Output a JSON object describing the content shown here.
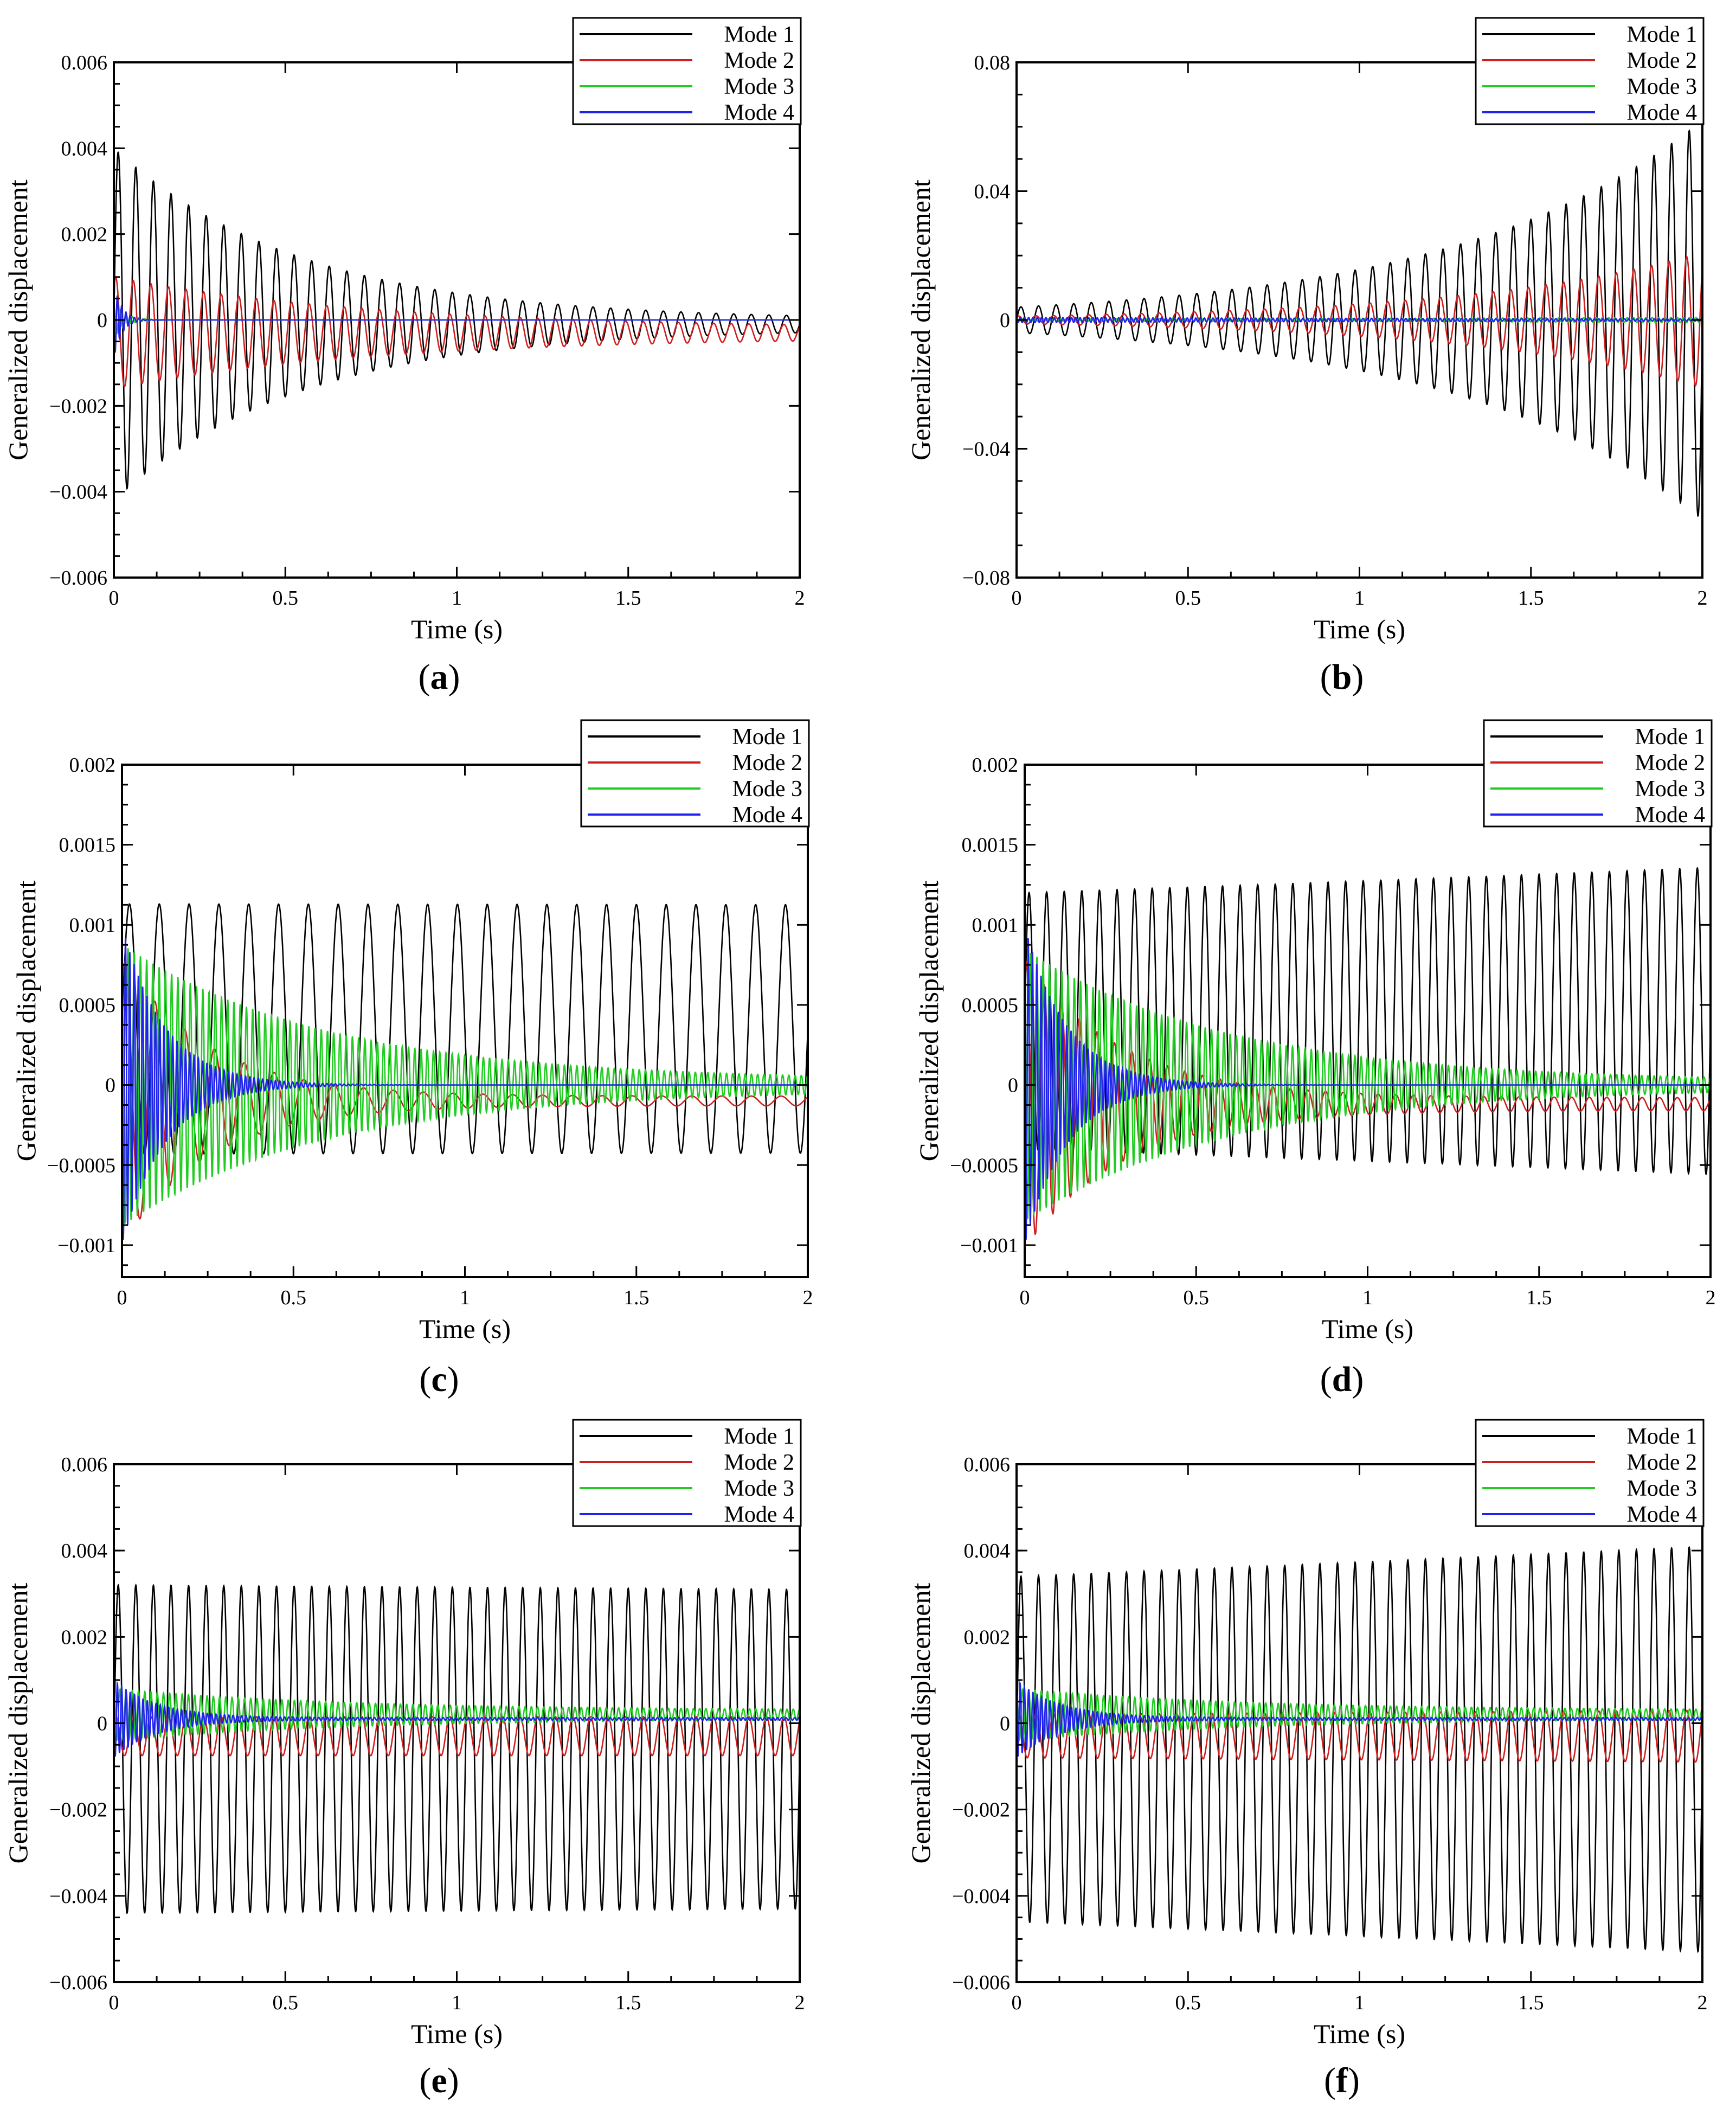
{
  "chart_data": [
    {
      "type": "line",
      "panel_label": "a",
      "xlabel": "Time (s)",
      "ylabel": "Generalized displacement",
      "xlim": [
        0,
        2
      ],
      "ylim": [
        -0.006,
        0.006
      ],
      "xticks": [
        "0",
        "0.5",
        "1",
        "1.5",
        "2"
      ],
      "yticks": [
        "−0.006",
        "−0.004",
        "−0.002",
        "0",
        "0.002",
        "0.004",
        "0.006"
      ],
      "legend": {
        "position": "top-right",
        "entries": [
          "Mode 1",
          "Mode 2",
          "Mode 3",
          "Mode 4"
        ]
      },
      "series": [
        {
          "name": "Mode 1",
          "color": "#000000",
          "freq": 19.5,
          "offset": -0.0001,
          "amp_start": 0.0041,
          "amp_end": 0.0001,
          "decay": 1.85
        },
        {
          "name": "Mode 2",
          "color": "#cc1f1f",
          "freq": 19.5,
          "offset": -0.0003,
          "amp_start": 0.0013,
          "amp_end": 0.0001,
          "decay": 1.3
        },
        {
          "name": "Mode 3",
          "color": "#22cc22",
          "freq": 55,
          "offset": 0.0,
          "amp_start": 0.0004,
          "amp_end": 0.0,
          "decay": 30
        },
        {
          "name": "Mode 4",
          "color": "#2222ee",
          "freq": 80,
          "offset": 0.0,
          "amp_start": 0.0009,
          "amp_end": 0.0,
          "decay": 45
        }
      ]
    },
    {
      "type": "line",
      "panel_label": "b",
      "xlabel": "Time (s)",
      "ylabel": "Generalized displacement",
      "xlim": [
        0,
        2
      ],
      "ylim": [
        -0.08,
        0.08
      ],
      "xticks": [
        "0",
        "0.5",
        "1",
        "1.5",
        "2"
      ],
      "yticks": [
        "−0.08",
        "−0.04",
        "0",
        "0.04",
        "0.08"
      ],
      "legend": {
        "position": "top-right",
        "entries": [
          "Mode 1",
          "Mode 2",
          "Mode 3",
          "Mode 4"
        ]
      },
      "series": [
        {
          "name": "Mode 1",
          "color": "#000000",
          "freq": 19.5,
          "offset": 0.0,
          "amp_start": 0.004,
          "amp_end": 0.062,
          "decay": -1.37
        },
        {
          "name": "Mode 2",
          "color": "#cc1f1f",
          "freq": 19.5,
          "offset": 0.0,
          "amp_start": 0.0012,
          "amp_end": 0.021,
          "decay": -1.43
        },
        {
          "name": "Mode 3",
          "color": "#22cc22",
          "freq": 55,
          "offset": 0.0,
          "amp_start": 0.0003,
          "amp_end": 0.0008,
          "decay": -0.5
        },
        {
          "name": "Mode 4",
          "color": "#2222ee",
          "freq": 80,
          "offset": 0.0,
          "amp_start": 0.0008,
          "amp_end": 0.0002,
          "decay": 0.7
        }
      ]
    },
    {
      "type": "line",
      "panel_label": "c",
      "xlabel": "Time (s)",
      "ylabel": "Generalized displacement",
      "xlim": [
        0,
        2
      ],
      "ylim": [
        -0.0012,
        0.002
      ],
      "xticks": [
        "0",
        "0.5",
        "1",
        "1.5",
        "2"
      ],
      "yticks": [
        "−0.001",
        "−0.0005",
        "0",
        "0.0005",
        "0.001",
        "0.0015",
        "0.002"
      ],
      "legend": {
        "position": "top-right",
        "entries": [
          "Mode 1",
          "Mode 2",
          "Mode 3",
          "Mode 4"
        ]
      },
      "series": [
        {
          "name": "Mode 1",
          "color": "#000000",
          "freq": 11.5,
          "offset": 0.00035,
          "amp_start": 0.00078,
          "amp_end": 0.00072,
          "decay": 0.04
        },
        {
          "name": "Mode 2",
          "color": "#cc1f1f",
          "freq": 11.5,
          "offset": -0.0001,
          "amp_start": 0.0009,
          "amp_end": 3e-05,
          "decay": 4.0
        },
        {
          "name": "Mode 3",
          "color": "#22cc22",
          "freq": 55,
          "offset": 0.0,
          "amp_start": 0.00088,
          "amp_end": 3e-05,
          "decay": 1.7
        },
        {
          "name": "Mode 4",
          "color": "#2222ee",
          "freq": 80,
          "offset": 0.0,
          "amp_start": 0.001,
          "amp_end": 0.0,
          "decay": 8.0
        }
      ]
    },
    {
      "type": "line",
      "panel_label": "d",
      "xlabel": "Time (s)",
      "ylabel": "Generalized displacement",
      "xlim": [
        0,
        2
      ],
      "ylim": [
        -0.0012,
        0.002
      ],
      "xticks": [
        "0",
        "0.5",
        "1",
        "1.5",
        "2"
      ],
      "yticks": [
        "−0.001",
        "−0.0005",
        "0",
        "0.0005",
        "0.001",
        "0.0015",
        "0.002"
      ],
      "legend": {
        "position": "top-right",
        "entries": [
          "Mode 1",
          "Mode 2",
          "Mode 3",
          "Mode 4"
        ]
      },
      "series": [
        {
          "name": "Mode 1",
          "color": "#000000",
          "freq": 19.5,
          "offset": 0.0004,
          "amp_start": 0.0008,
          "amp_end": 0.00095,
          "decay": -0.09
        },
        {
          "name": "Mode 2",
          "color": "#cc1f1f",
          "freq": 19.5,
          "offset": -0.00012,
          "amp_start": 0.0009,
          "amp_end": 4e-05,
          "decay": 3.5
        },
        {
          "name": "Mode 3",
          "color": "#22cc22",
          "freq": 55,
          "offset": 0.0,
          "amp_start": 0.00085,
          "amp_end": 2e-05,
          "decay": 1.7
        },
        {
          "name": "Mode 4",
          "color": "#2222ee",
          "freq": 80,
          "offset": 0.0,
          "amp_start": 0.001,
          "amp_end": 0.0,
          "decay": 8.0
        }
      ]
    },
    {
      "type": "line",
      "panel_label": "e",
      "xlabel": "Time (s)",
      "ylabel": "Generalized displacement",
      "xlim": [
        0,
        2
      ],
      "ylim": [
        -0.006,
        0.006
      ],
      "xticks": [
        "0",
        "0.5",
        "1",
        "1.5",
        "2"
      ],
      "yticks": [
        "−0.006",
        "−0.004",
        "−0.002",
        "0",
        "0.002",
        "0.004",
        "0.006"
      ],
      "legend": {
        "position": "top-right",
        "entries": [
          "Mode 1",
          "Mode 2",
          "Mode 3",
          "Mode 4"
        ]
      },
      "series": [
        {
          "name": "Mode 1",
          "color": "#000000",
          "freq": 19.5,
          "offset": -0.0006,
          "amp_start": 0.0038,
          "amp_end": 0.0032,
          "decay": 0.09
        },
        {
          "name": "Mode 2",
          "color": "#cc1f1f",
          "freq": 19.5,
          "offset": -0.0003,
          "amp_start": 0.00045,
          "amp_end": 0.00045,
          "decay": 0.0
        },
        {
          "name": "Mode 3",
          "color": "#22cc22",
          "freq": 55,
          "offset": 0.0002,
          "amp_start": 0.0006,
          "amp_end": 0.0001,
          "decay": 1.5
        },
        {
          "name": "Mode 4",
          "color": "#2222ee",
          "freq": 80,
          "offset": 0.0001,
          "amp_start": 0.0009,
          "amp_end": 3e-05,
          "decay": 8.0
        }
      ]
    },
    {
      "type": "line",
      "panel_label": "f",
      "xlabel": "Time (s)",
      "ylabel": "Generalized displacement",
      "xlim": [
        0,
        2
      ],
      "ylim": [
        -0.006,
        0.006
      ],
      "xticks": [
        "0",
        "0.5",
        "1",
        "1.5",
        "2"
      ],
      "yticks": [
        "−0.006",
        "−0.004",
        "−0.002",
        "0",
        "0.002",
        "0.004",
        "0.006"
      ],
      "legend": {
        "position": "top-right",
        "entries": [
          "Mode 1",
          "Mode 2",
          "Mode 3",
          "Mode 4"
        ]
      },
      "series": [
        {
          "name": "Mode 1",
          "color": "#000000",
          "freq": 19.5,
          "offset": -0.0006,
          "amp_start": 0.004,
          "amp_end": 0.0047,
          "decay": -0.08
        },
        {
          "name": "Mode 2",
          "color": "#cc1f1f",
          "freq": 19.5,
          "offset": -0.0003,
          "amp_start": 0.0005,
          "amp_end": 0.0006,
          "decay": -0.09
        },
        {
          "name": "Mode 3",
          "color": "#22cc22",
          "freq": 55,
          "offset": 0.0002,
          "amp_start": 0.0006,
          "amp_end": 0.0001,
          "decay": 1.5
        },
        {
          "name": "Mode 4",
          "color": "#2222ee",
          "freq": 80,
          "offset": 0.0001,
          "amp_start": 0.0009,
          "amp_end": 3e-05,
          "decay": 8.0
        }
      ]
    }
  ]
}
